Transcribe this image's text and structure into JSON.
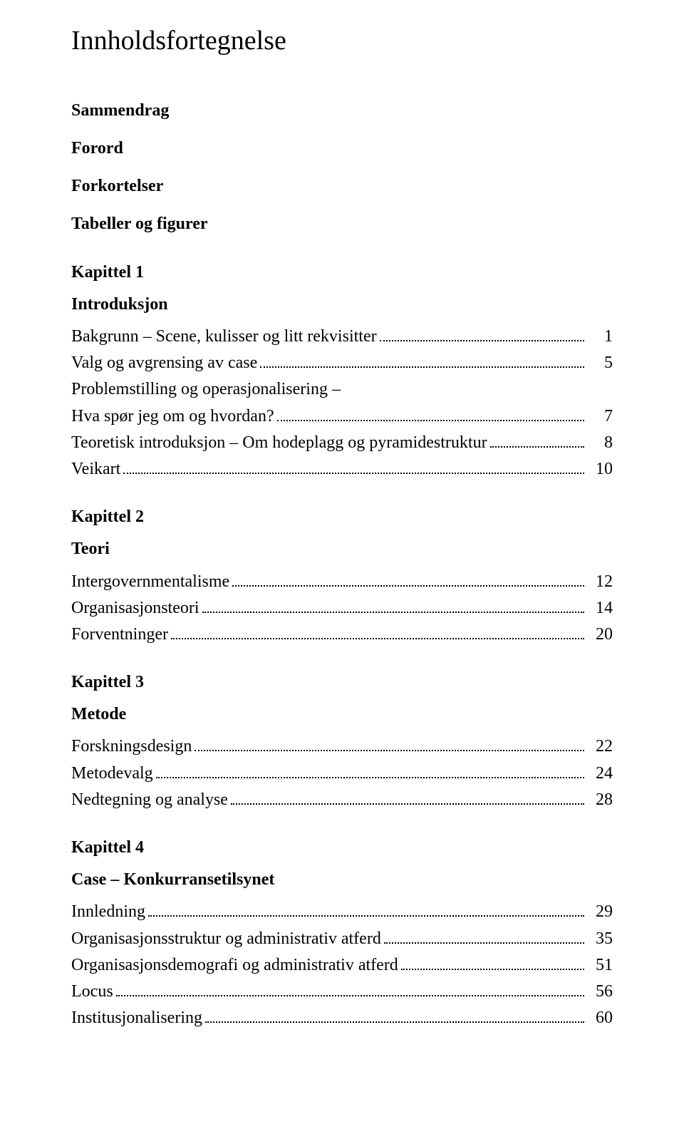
{
  "title": "Innholdsfortegnelse",
  "frontmatter": {
    "sammendrag": "Sammendrag",
    "forord": "Forord",
    "forkortelser": "Forkortelser",
    "tabeller": "Tabeller og figurer"
  },
  "chapters": [
    {
      "heading_line1": "Kapittel 1",
      "heading_line2": "Introduksjon",
      "entries": [
        {
          "label": "Bakgrunn – Scene, kulisser og litt rekvisitter",
          "page": "1"
        },
        {
          "label": "Valg og avgrensing av case",
          "page": "5"
        },
        {
          "label": "Problemstilling og operasjonalisering –",
          "label2": "Hva spør jeg om og hvordan?",
          "page": "7"
        },
        {
          "label": "Teoretisk introduksjon – Om hodeplagg og pyramidestruktur",
          "page": "8"
        },
        {
          "label": "Veikart",
          "page": "10"
        }
      ]
    },
    {
      "heading_line1": "Kapittel 2",
      "heading_line2": "Teori",
      "entries": [
        {
          "label": "Intergovernmentalisme",
          "page": "12"
        },
        {
          "label": "Organisasjonsteori",
          "page": "14"
        },
        {
          "label": "Forventninger",
          "page": "20"
        }
      ]
    },
    {
      "heading_line1": "Kapittel 3",
      "heading_line2": "Metode",
      "entries": [
        {
          "label": "Forskningsdesign",
          "page": "22"
        },
        {
          "label": "Metodevalg",
          "page": "24"
        },
        {
          "label": "Nedtegning og analyse",
          "page": "28"
        }
      ]
    },
    {
      "heading_line1": "Kapittel 4",
      "heading_line2": "Case – Konkurransetilsynet",
      "entries": [
        {
          "label": "Innledning",
          "page": "29"
        },
        {
          "label": "Organisasjonsstruktur og administrativ atferd",
          "page": "35"
        },
        {
          "label": "Organisasjonsdemografi og administrativ atferd",
          "page": "51"
        },
        {
          "label": "Locus",
          "page": "56"
        },
        {
          "label": "Institusjonalisering",
          "page": "60"
        }
      ]
    }
  ]
}
